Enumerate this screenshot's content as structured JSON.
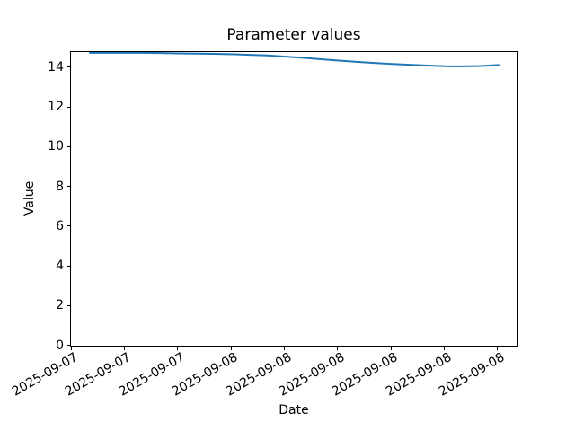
{
  "chart_data": {
    "type": "line",
    "title": "Parameter values",
    "xlabel": "Date",
    "ylabel": "Value",
    "grid": false,
    "legend": "none",
    "ylim": [
      0,
      14.79
    ],
    "y_ticks": [
      0,
      2,
      4,
      6,
      8,
      10,
      12,
      14
    ],
    "x_tick_labels": [
      "2025-09-07",
      "2025-09-07",
      "2025-09-07",
      "2025-09-08",
      "2025-09-08",
      "2025-09-08",
      "2025-09-08",
      "2025-09-08",
      "2025-09-08"
    ],
    "x_tick_interval_hours": 3,
    "series": [
      {
        "name": "Parameter values",
        "color": "#1f77b4",
        "x_hours_from_start": [
          0,
          1,
          2,
          3,
          4,
          5,
          6,
          7,
          8,
          9,
          10,
          11,
          12,
          13,
          14,
          15,
          16,
          17,
          18,
          19,
          20,
          21,
          22,
          23
        ],
        "values": [
          14.75,
          14.75,
          14.75,
          14.75,
          14.74,
          14.72,
          14.71,
          14.7,
          14.68,
          14.65,
          14.62,
          14.56,
          14.5,
          14.43,
          14.36,
          14.3,
          14.24,
          14.19,
          14.15,
          14.11,
          14.08,
          14.07,
          14.09,
          14.14
        ]
      }
    ]
  }
}
